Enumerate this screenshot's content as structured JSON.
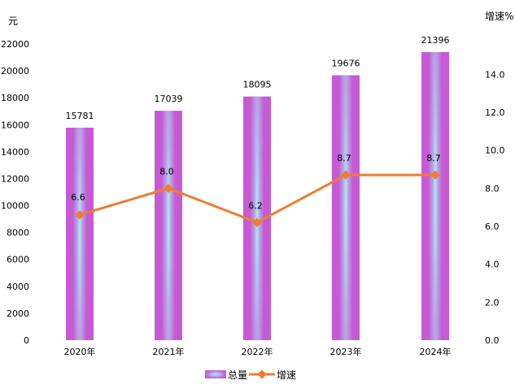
{
  "chart_data": {
    "type": "bar+line",
    "categories": [
      "2020年",
      "2021年",
      "2022年",
      "2023年",
      "2024年"
    ],
    "series": [
      {
        "name": "总量",
        "type": "bar",
        "axis": "left",
        "values": [
          15781,
          17039,
          18095,
          19676,
          21396
        ],
        "labels": [
          "15781",
          "17039",
          "18095",
          "19676",
          "21396"
        ]
      },
      {
        "name": "增速",
        "type": "line",
        "axis": "right",
        "values": [
          6.6,
          8.0,
          6.2,
          8.7,
          8.7
        ],
        "labels": [
          "6.6",
          "8.0",
          "6.2",
          "8.7",
          "8.7"
        ]
      }
    ],
    "ylabel_left": "元",
    "ylabel_right": "增速%",
    "ylim_left": [
      0,
      22000
    ],
    "yticks_left": [
      "0",
      "2000",
      "4000",
      "6000",
      "8000",
      "10000",
      "12000",
      "14000",
      "16000",
      "18000",
      "20000",
      "22000"
    ],
    "ylim_right": [
      0,
      15.6
    ],
    "yticks_right": [
      "0.0",
      "2.0",
      "4.0",
      "6.0",
      "8.0",
      "10.0",
      "12.0",
      "14.0"
    ],
    "grid": false,
    "legend": "bottom-center",
    "colors": {
      "bar": "#c65ad4",
      "bar_glow": "#a8f0ee",
      "line": "#ed7d31"
    }
  }
}
